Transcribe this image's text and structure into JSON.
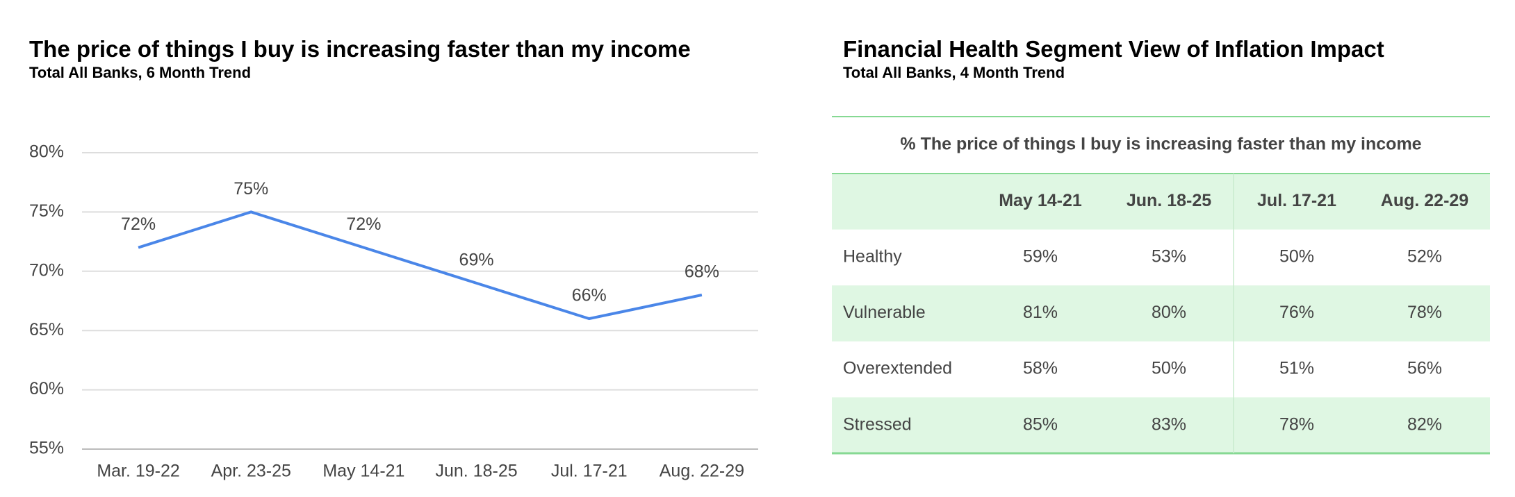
{
  "chart_data": {
    "type": "line",
    "title": "The price of things I buy is increasing faster than my income",
    "subtitle": "Total All Banks, 6 Month Trend",
    "categories": [
      "Mar. 19-22",
      "Apr. 23-25",
      "May 14-21",
      "Jun. 18-25",
      "Jul. 17-21",
      "Aug. 22-29"
    ],
    "values": [
      72,
      75,
      72,
      69,
      66,
      68
    ],
    "value_labels": [
      "72%",
      "75%",
      "72%",
      "69%",
      "66%",
      "68%"
    ],
    "color": "#4a86e8",
    "ylim": [
      55,
      80
    ],
    "yticks": [
      {
        "value": 55,
        "label": "55%"
      },
      {
        "value": 60,
        "label": "60%"
      },
      {
        "value": 65,
        "label": "65%"
      },
      {
        "value": 70,
        "label": "70%"
      },
      {
        "value": 75,
        "label": "75%"
      },
      {
        "value": 80,
        "label": "80%"
      }
    ],
    "grid": true
  },
  "table": {
    "title": "Financial Health Segment View of Inflation Impact",
    "subtitle": "Total All Banks, 4 Month Trend",
    "caption": "% The price of things I buy is increasing faster than my income",
    "columns": [
      "May 14-21",
      "Jun. 18-25",
      "Jul. 17-21",
      "Aug. 22-29"
    ],
    "rows": [
      {
        "name": "Healthy",
        "values": [
          "59%",
          "53%",
          "50%",
          "52%"
        ]
      },
      {
        "name": "Vulnerable",
        "values": [
          "81%",
          "80%",
          "76%",
          "78%"
        ]
      },
      {
        "name": "Overextended",
        "values": [
          "58%",
          "50%",
          "51%",
          "56%"
        ]
      },
      {
        "name": "Stressed",
        "values": [
          "85%",
          "83%",
          "78%",
          "82%"
        ]
      }
    ]
  }
}
